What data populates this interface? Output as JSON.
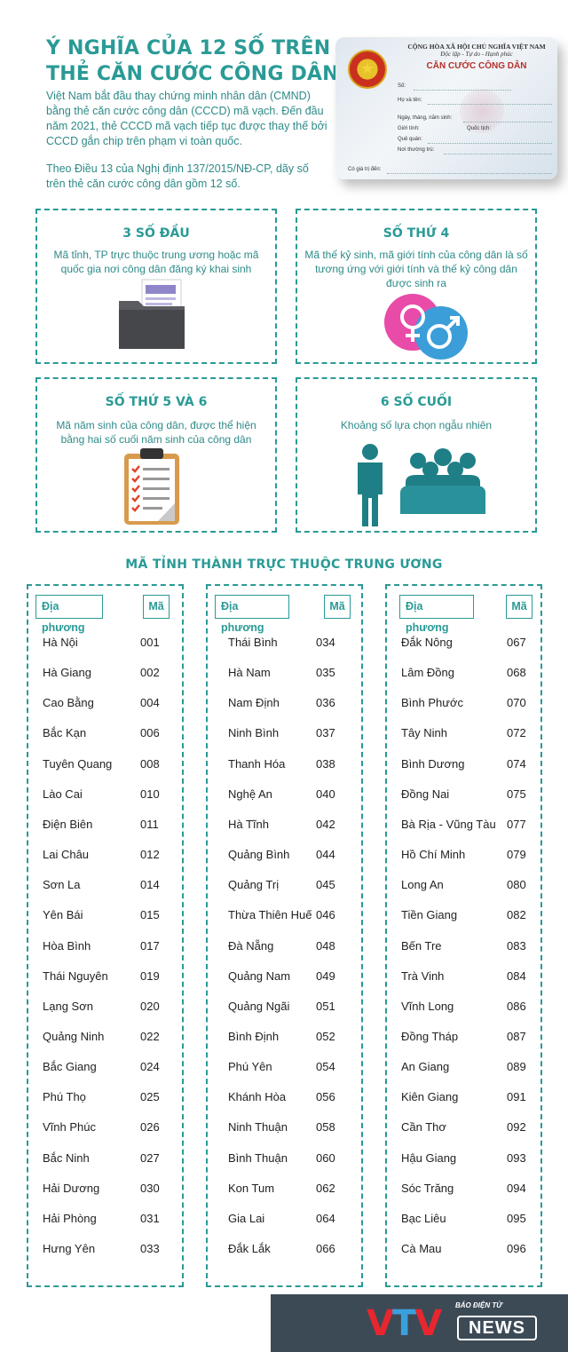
{
  "title": "Ý nghĩa của 12 số trên thẻ căn cước công dân",
  "intro": [
    "Việt Nam bắt đầu thay chứng minh nhân dân (CMND) bằng thẻ căn cước công dân (CCCD) mã vạch. Đến đầu năm 2021, thẻ CCCD mã vạch tiếp tục được thay thế bởi CCCD gắn chip trên phạm vi toàn quốc.",
    "Theo Điều 13 của Nghị định 137/2015/NĐ-CP, dãy số trên thẻ căn cước công dân gồm 12 số."
  ],
  "card": {
    "header1": "CỘNG HÒA XÃ HỘI CHỦ NGHĨA VIỆT NAM",
    "header2": "Độc lập - Tự do - Hạnh phúc",
    "title": "CĂN CƯỚC CÔNG DÂN",
    "fields": {
      "so": "Số:",
      "ho_ten": "Họ và tên:",
      "ngay_sinh": "Ngày, tháng, năm sinh:",
      "gioi_tinh": "Giới tính:",
      "quoc_tich": "Quốc tịch:",
      "que_quan": "Quê quán:",
      "noi_thuong_tru": "Nơi thường trú:",
      "gia_tri_den": "Có giá trị đến:"
    }
  },
  "boxes": [
    {
      "title": "3 số đầu",
      "desc": "Mã tỉnh, TP trực thuộc trung ương hoặc mã quốc gia nơi công dân đăng ký khai sinh",
      "icon": "folder-icon"
    },
    {
      "title": "Số thứ 4",
      "desc": "Mã thế kỷ sinh, mã giới tính của công dân là số tương ứng với giới tính và thế kỷ công dân được sinh ra",
      "icon": "gender-icon"
    },
    {
      "title": "Số thứ 5 và 6",
      "desc": "Mã năm sinh của công dân, được thể hiện bằng hai số cuối năm sinh của công dân",
      "icon": "clipboard-icon"
    },
    {
      "title": "6 số cuối",
      "desc": "Khoảng số lựa chọn ngẫu nhiên",
      "icon": "people-icon"
    }
  ],
  "section_title": "Mã tỉnh thành trực thuộc trung ương",
  "table": {
    "header_place": "Địa phương",
    "header_code": "Mã",
    "columns": [
      [
        [
          "Hà Nội",
          "001"
        ],
        [
          "Hà Giang",
          "002"
        ],
        [
          "Cao Bằng",
          "004"
        ],
        [
          "Bắc Kạn",
          "006"
        ],
        [
          "Tuyên Quang",
          "008"
        ],
        [
          "Lào Cai",
          "010"
        ],
        [
          "Điện Biên",
          "011"
        ],
        [
          "Lai Châu",
          "012"
        ],
        [
          "Sơn La",
          "014"
        ],
        [
          "Yên Bái",
          "015"
        ],
        [
          "Hòa Bình",
          "017"
        ],
        [
          "Thái Nguyên",
          "019"
        ],
        [
          "Lạng Sơn",
          "020"
        ],
        [
          "Quảng Ninh",
          "022"
        ],
        [
          "Bắc Giang",
          "024"
        ],
        [
          "Phú Thọ",
          "025"
        ],
        [
          "Vĩnh Phúc",
          "026"
        ],
        [
          "Bắc Ninh",
          "027"
        ],
        [
          "Hải Dương",
          "030"
        ],
        [
          "Hải Phòng",
          "031"
        ],
        [
          "Hưng Yên",
          "033"
        ]
      ],
      [
        [
          "Thái Bình",
          "034"
        ],
        [
          "Hà Nam",
          "035"
        ],
        [
          "Nam Định",
          "036"
        ],
        [
          "Ninh Bình",
          "037"
        ],
        [
          "Thanh Hóa",
          "038"
        ],
        [
          "Nghệ An",
          "040"
        ],
        [
          "Hà Tĩnh",
          "042"
        ],
        [
          "Quảng Bình",
          "044"
        ],
        [
          "Quảng Trị",
          "045"
        ],
        [
          "Thừa Thiên Huế",
          "046"
        ],
        [
          "Đà Nẵng",
          "048"
        ],
        [
          "Quảng Nam",
          "049"
        ],
        [
          "Quảng Ngãi",
          "051"
        ],
        [
          "Bình Định",
          "052"
        ],
        [
          "Phú Yên",
          "054"
        ],
        [
          "Khánh Hòa",
          "056"
        ],
        [
          "Ninh Thuận",
          "058"
        ],
        [
          "Bình Thuận",
          "060"
        ],
        [
          "Kon Tum",
          "062"
        ],
        [
          "Gia Lai",
          "064"
        ],
        [
          "Đắk Lắk",
          "066"
        ]
      ],
      [
        [
          "Đắk Nông",
          "067"
        ],
        [
          "Lâm Đồng",
          "068"
        ],
        [
          "Bình Phước",
          "070"
        ],
        [
          "Tây Ninh",
          "072"
        ],
        [
          "Bình Dương",
          "074"
        ],
        [
          "Đồng Nai",
          "075"
        ],
        [
          "Bà Rịa - Vũng Tàu",
          "077"
        ],
        [
          "Hồ Chí Minh",
          "079"
        ],
        [
          "Long An",
          "080"
        ],
        [
          "Tiền Giang",
          "082"
        ],
        [
          "Bến Tre",
          "083"
        ],
        [
          "Trà Vinh",
          "084"
        ],
        [
          "Vĩnh Long",
          "086"
        ],
        [
          "Đồng Tháp",
          "087"
        ],
        [
          "An Giang",
          "089"
        ],
        [
          "Kiên Giang",
          "091"
        ],
        [
          "Cần Thơ",
          "092"
        ],
        [
          "Hậu Giang",
          "093"
        ],
        [
          "Sóc Trăng",
          "094"
        ],
        [
          "Bạc Liêu",
          "095"
        ],
        [
          "Cà Mau",
          "096"
        ]
      ]
    ]
  },
  "footer": {
    "logo_v1": "V",
    "logo_t": "T",
    "logo_v2": "V",
    "tag": "BÁO ĐIỆN TỬ",
    "news": "NEWS"
  },
  "colors": {
    "accent": "#2a9a96",
    "text": "#2d8a87",
    "footer_bg": "#3c4a56",
    "vtv_red": "#e8262e",
    "vtv_blue": "#3aa0dd"
  }
}
